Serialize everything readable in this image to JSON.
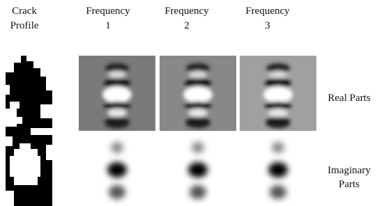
{
  "columns": [
    [
      "Crack",
      "Profile"
    ],
    [
      "Frequency",
      "1"
    ],
    [
      "Frequency",
      "2"
    ],
    [
      "Frequency",
      "3"
    ]
  ],
  "rows": [
    [
      "Real Parts"
    ],
    [
      "Imaginary",
      "Parts"
    ]
  ]
}
